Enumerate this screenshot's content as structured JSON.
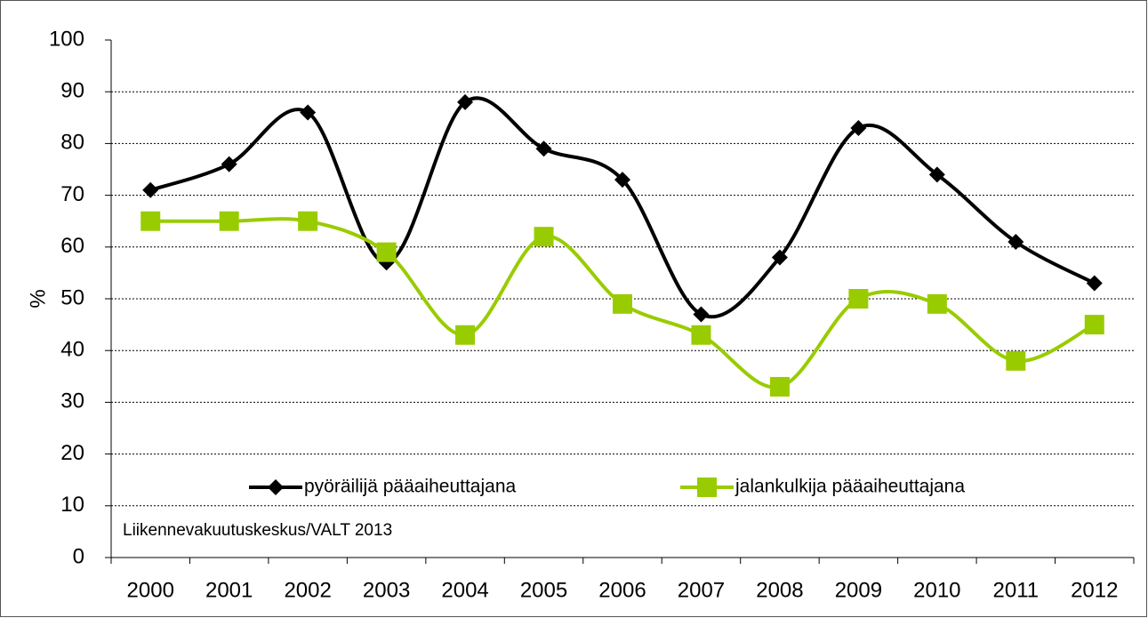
{
  "chart_data": {
    "type": "line",
    "categories": [
      "2000",
      "2001",
      "2002",
      "2003",
      "2004",
      "2005",
      "2006",
      "2007",
      "2008",
      "2009",
      "2010",
      "2011",
      "2012"
    ],
    "series": [
      {
        "name": "pyöräilijä pääaiheuttajana",
        "color": "#000000",
        "marker": "diamond",
        "values": [
          71,
          76,
          86,
          57,
          88,
          79,
          73,
          47,
          58,
          83,
          74,
          61,
          53
        ]
      },
      {
        "name": "jalankulkija pääaiheuttajana",
        "color": "#99cc00",
        "marker": "square",
        "values": [
          65,
          65,
          65,
          59,
          43,
          62,
          49,
          43,
          33,
          50,
          49,
          38,
          45
        ]
      }
    ],
    "y_label": "%",
    "annotation": "Liikennevakuutuskeskus/VALT 2013",
    "ylim": [
      0,
      100
    ],
    "yticks": [
      0,
      10,
      20,
      30,
      40,
      50,
      60,
      70,
      80,
      90,
      100
    ],
    "grid": true,
    "smooth": true
  }
}
